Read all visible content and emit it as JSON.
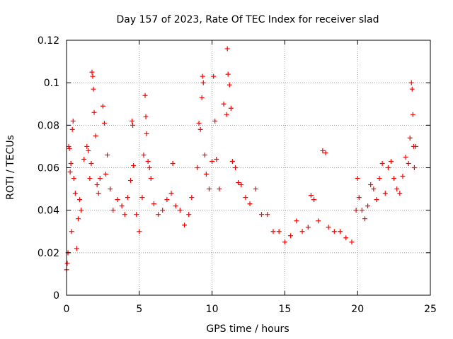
{
  "chart_data": {
    "type": "scatter",
    "title": "Day 157 of 2023, Rate Of TEC Index for receiver slad",
    "xlabel": "GPS time / hours",
    "ylabel": "ROTI / TECUs",
    "xlim": [
      0,
      25
    ],
    "ylim": [
      0,
      0.12
    ],
    "xticks": [
      0,
      5,
      10,
      15,
      20,
      25
    ],
    "yticks": [
      0,
      0.02,
      0.04,
      0.06,
      0.08,
      0.1,
      0.12
    ],
    "xtick_labels": [
      "0",
      "5",
      "10",
      "15",
      "20",
      "25"
    ],
    "ytick_labels": [
      "0",
      "0.02",
      "0.04",
      "0.06",
      "0.08",
      "0.1",
      "0.12"
    ],
    "grid": true,
    "marker": "plus",
    "color": "#ff0000",
    "series": [
      {
        "points": [
          [
            0.0,
            0.012
          ],
          [
            0.05,
            0.015
          ],
          [
            0.1,
            0.02
          ],
          [
            0.15,
            0.07
          ],
          [
            0.2,
            0.069
          ],
          [
            0.25,
            0.058
          ],
          [
            0.3,
            0.062
          ],
          [
            0.35,
            0.03
          ],
          [
            0.4,
            0.078
          ],
          [
            0.45,
            0.082
          ],
          [
            0.5,
            0.055
          ],
          [
            0.6,
            0.048
          ],
          [
            0.7,
            0.022
          ],
          [
            0.8,
            0.036
          ],
          [
            0.9,
            0.045
          ],
          [
            1.0,
            0.04
          ],
          [
            1.2,
            0.064
          ],
          [
            1.4,
            0.07
          ],
          [
            1.5,
            0.068
          ],
          [
            1.6,
            0.055
          ],
          [
            1.7,
            0.062
          ],
          [
            1.75,
            0.105
          ],
          [
            1.8,
            0.103
          ],
          [
            1.85,
            0.097
          ],
          [
            1.9,
            0.086
          ],
          [
            2.0,
            0.075
          ],
          [
            2.1,
            0.052
          ],
          [
            2.2,
            0.048
          ],
          [
            2.3,
            0.055
          ],
          [
            2.5,
            0.089
          ],
          [
            2.6,
            0.081
          ],
          [
            2.7,
            0.057
          ],
          [
            2.8,
            0.066
          ],
          [
            3.0,
            0.05
          ],
          [
            3.2,
            0.04
          ],
          [
            3.5,
            0.045
          ],
          [
            3.8,
            0.042
          ],
          [
            4.0,
            0.038
          ],
          [
            4.2,
            0.046
          ],
          [
            4.4,
            0.054
          ],
          [
            4.5,
            0.082
          ],
          [
            4.55,
            0.08
          ],
          [
            4.6,
            0.061
          ],
          [
            4.8,
            0.038
          ],
          [
            5.0,
            0.03
          ],
          [
            5.2,
            0.046
          ],
          [
            5.3,
            0.066
          ],
          [
            5.4,
            0.094
          ],
          [
            5.45,
            0.084
          ],
          [
            5.5,
            0.076
          ],
          [
            5.6,
            0.063
          ],
          [
            5.7,
            0.06
          ],
          [
            5.8,
            0.055
          ],
          [
            6.0,
            0.043
          ],
          [
            6.3,
            0.038
          ],
          [
            6.6,
            0.04
          ],
          [
            6.9,
            0.045
          ],
          [
            7.2,
            0.048
          ],
          [
            7.3,
            0.062
          ],
          [
            7.5,
            0.042
          ],
          [
            7.8,
            0.04
          ],
          [
            8.1,
            0.033
          ],
          [
            8.4,
            0.038
          ],
          [
            8.6,
            0.046
          ],
          [
            9.0,
            0.06
          ],
          [
            9.1,
            0.081
          ],
          [
            9.2,
            0.078
          ],
          [
            9.3,
            0.093
          ],
          [
            9.35,
            0.103
          ],
          [
            9.4,
            0.1
          ],
          [
            9.5,
            0.066
          ],
          [
            9.6,
            0.057
          ],
          [
            9.8,
            0.05
          ],
          [
            10.0,
            0.063
          ],
          [
            10.1,
            0.103
          ],
          [
            10.2,
            0.082
          ],
          [
            10.3,
            0.064
          ],
          [
            10.5,
            0.05
          ],
          [
            10.8,
            0.09
          ],
          [
            11.0,
            0.085
          ],
          [
            11.05,
            0.116
          ],
          [
            11.1,
            0.104
          ],
          [
            11.2,
            0.099
          ],
          [
            11.3,
            0.088
          ],
          [
            11.4,
            0.063
          ],
          [
            11.6,
            0.06
          ],
          [
            11.8,
            0.053
          ],
          [
            12.0,
            0.052
          ],
          [
            12.3,
            0.046
          ],
          [
            12.6,
            0.043
          ],
          [
            13.0,
            0.05
          ],
          [
            13.4,
            0.038
          ],
          [
            13.8,
            0.038
          ],
          [
            14.2,
            0.03
          ],
          [
            14.6,
            0.03
          ],
          [
            15.0,
            0.025
          ],
          [
            15.4,
            0.028
          ],
          [
            15.8,
            0.035
          ],
          [
            16.2,
            0.03
          ],
          [
            16.6,
            0.032
          ],
          [
            16.8,
            0.047
          ],
          [
            17.0,
            0.045
          ],
          [
            17.3,
            0.035
          ],
          [
            17.6,
            0.068
          ],
          [
            17.8,
            0.067
          ],
          [
            18.0,
            0.032
          ],
          [
            18.4,
            0.03
          ],
          [
            18.8,
            0.03
          ],
          [
            19.2,
            0.027
          ],
          [
            19.6,
            0.025
          ],
          [
            19.9,
            0.04
          ],
          [
            20.0,
            0.055
          ],
          [
            20.1,
            0.046
          ],
          [
            20.3,
            0.04
          ],
          [
            20.5,
            0.036
          ],
          [
            20.7,
            0.042
          ],
          [
            20.9,
            0.052
          ],
          [
            21.1,
            0.05
          ],
          [
            21.3,
            0.045
          ],
          [
            21.5,
            0.055
          ],
          [
            21.7,
            0.062
          ],
          [
            21.9,
            0.048
          ],
          [
            22.1,
            0.06
          ],
          [
            22.3,
            0.063
          ],
          [
            22.5,
            0.055
          ],
          [
            22.7,
            0.05
          ],
          [
            22.9,
            0.048
          ],
          [
            23.1,
            0.056
          ],
          [
            23.3,
            0.065
          ],
          [
            23.5,
            0.062
          ],
          [
            23.6,
            0.074
          ],
          [
            23.7,
            0.1
          ],
          [
            23.75,
            0.097
          ],
          [
            23.8,
            0.085
          ],
          [
            23.85,
            0.07
          ],
          [
            23.9,
            0.06
          ],
          [
            24.0,
            0.07
          ]
        ]
      }
    ]
  }
}
